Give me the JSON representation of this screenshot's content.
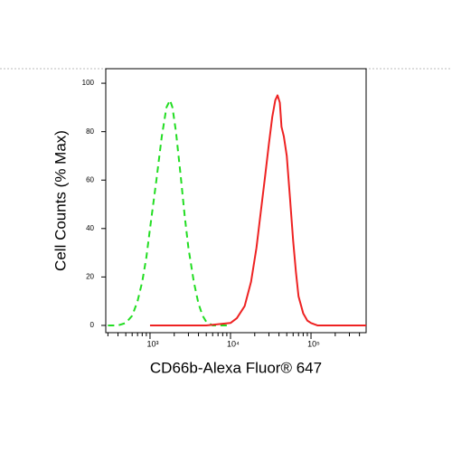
{
  "chart_data": {
    "type": "line",
    "xlabel": "CD66b-Alexa Fluor® 647",
    "ylabel": "Cell Counts (% Max)",
    "xscale": "log",
    "xlim": [
      282,
      484000
    ],
    "ylim": [
      -3,
      106
    ],
    "xticks": [
      {
        "value": 1000,
        "label": "10³"
      },
      {
        "value": 10000,
        "label": "10⁴"
      },
      {
        "value": 100000,
        "label": "10⁵"
      }
    ],
    "xticks_minor": [
      300,
      400,
      500,
      600,
      700,
      800,
      900,
      2000,
      3000,
      4000,
      5000,
      6000,
      7000,
      8000,
      9000,
      20000,
      30000,
      40000,
      50000,
      60000,
      70000,
      80000,
      90000,
      200000,
      300000,
      400000
    ],
    "yticks": [
      0,
      20,
      40,
      60,
      80,
      100
    ],
    "series": [
      {
        "color": "#22dd22",
        "dash": true,
        "x": [
          300,
          400,
          500,
          600,
          700,
          800,
          900,
          1000,
          1200,
          1400,
          1600,
          1770,
          1900,
          2100,
          2400,
          2700,
          3000,
          3500,
          4000,
          4500,
          5000,
          6000,
          10000
        ],
        "values": [
          0,
          0,
          1,
          4,
          10,
          18,
          28,
          40,
          60,
          78,
          90,
          93,
          90,
          80,
          62,
          45,
          32,
          18,
          9,
          4,
          1.5,
          0,
          0
        ]
      },
      {
        "color": "#ee2222",
        "dash": false,
        "x": [
          1000,
          5000,
          10000,
          12000,
          15000,
          18000,
          21000,
          24000,
          27000,
          30000,
          33000,
          36000,
          38400,
          41000,
          43000,
          46000,
          50000,
          55000,
          60000,
          65000,
          70000,
          80000,
          90000,
          100000,
          120000,
          484000
        ],
        "values": [
          0,
          0,
          1,
          3,
          8,
          18,
          32,
          48,
          62,
          75,
          86,
          93,
          95,
          92,
          82,
          78,
          70,
          52,
          35,
          22,
          12,
          5,
          2,
          1,
          0,
          0
        ]
      }
    ]
  }
}
